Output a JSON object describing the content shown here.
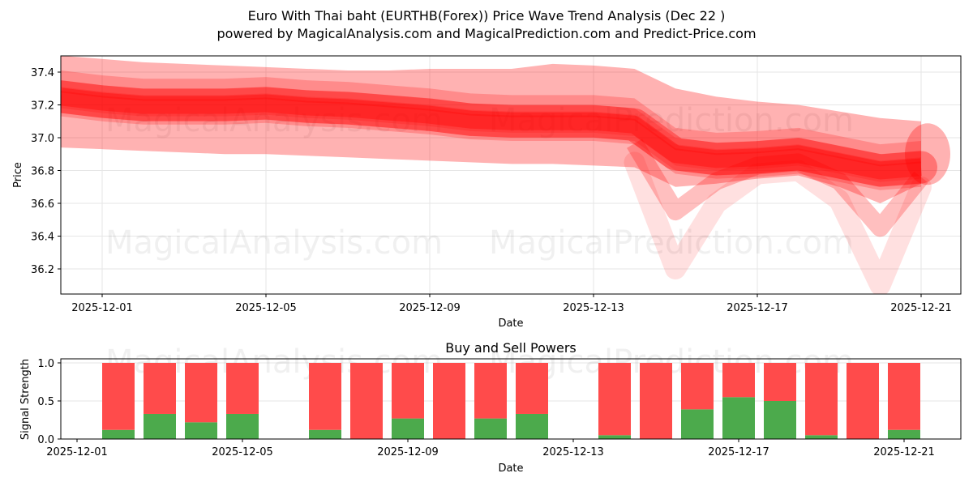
{
  "header": {
    "title": "Euro With Thai baht (EURTHB(Forex)) Price Wave Trend Analysis (Dec 22 )",
    "subtitle": "powered by MagicalAnalysis.com and MagicalPrediction.com and Predict-Price.com"
  },
  "watermarks": [
    "MagicalAnalysis.com",
    "MagicalPrediction.com"
  ],
  "colors": {
    "wave": "#ff0000",
    "buy": "#4caa4c",
    "sell": "#ff4b4b",
    "grid": "#e6e6e6"
  },
  "chart_data": [
    {
      "type": "area",
      "title": "Price Wave Trend",
      "xlabel": "Date",
      "ylabel": "Price",
      "ylim": [
        36.05,
        37.5
      ],
      "yticks": [
        "36.2",
        "36.4",
        "36.6",
        "36.8",
        "37.0",
        "37.2",
        "37.4"
      ],
      "xticks": [
        "2025-12-01",
        "2025-12-05",
        "2025-12-09",
        "2025-12-13",
        "2025-12-17",
        "2025-12-21"
      ],
      "grid": true,
      "x": [
        "2025-11-30",
        "2025-12-01",
        "2025-12-02",
        "2025-12-03",
        "2025-12-04",
        "2025-12-05",
        "2025-12-06",
        "2025-12-07",
        "2025-12-08",
        "2025-12-09",
        "2025-12-10",
        "2025-12-11",
        "2025-12-12",
        "2025-12-13",
        "2025-12-14",
        "2025-12-15",
        "2025-12-16",
        "2025-12-17",
        "2025-12-18",
        "2025-12-19",
        "2025-12-20",
        "2025-12-21"
      ],
      "series": [
        {
          "name": "center_wave",
          "values": [
            37.25,
            37.22,
            37.2,
            37.2,
            37.2,
            37.21,
            37.19,
            37.18,
            37.16,
            37.14,
            37.11,
            37.1,
            37.1,
            37.1,
            37.08,
            36.9,
            36.87,
            36.88,
            36.9,
            36.85,
            36.8,
            36.82
          ]
        },
        {
          "name": "upper_band",
          "values": [
            37.5,
            37.48,
            37.46,
            37.45,
            37.44,
            37.43,
            37.42,
            37.41,
            37.41,
            37.42,
            37.42,
            37.42,
            37.45,
            37.44,
            37.42,
            37.3,
            37.25,
            37.22,
            37.2,
            37.16,
            37.12,
            37.1
          ]
        },
        {
          "name": "lower_band",
          "values": [
            36.94,
            36.93,
            36.92,
            36.91,
            36.9,
            36.9,
            36.89,
            36.88,
            36.87,
            36.86,
            36.85,
            36.84,
            36.84,
            36.83,
            36.82,
            36.7,
            36.72,
            36.75,
            36.77,
            36.7,
            36.6,
            36.72
          ]
        },
        {
          "name": "low_spikes",
          "values": [
            null,
            null,
            null,
            null,
            null,
            null,
            null,
            null,
            null,
            null,
            null,
            null,
            null,
            null,
            36.85,
            36.2,
            36.6,
            36.78,
            36.8,
            36.62,
            36.1,
            36.7
          ]
        }
      ]
    },
    {
      "type": "bar",
      "title": "Buy and Sell Powers",
      "xlabel": "Date",
      "ylabel": "Signal Strength",
      "ylim": [
        0,
        1.05
      ],
      "yticks": [
        "0.0",
        "0.5",
        "1.0"
      ],
      "xticks": [
        "2025-12-01",
        "2025-12-05",
        "2025-12-09",
        "2025-12-13",
        "2025-12-17",
        "2025-12-21"
      ],
      "grid": true,
      "stacked": true,
      "categories": [
        "2025-12-02",
        "2025-12-03",
        "2025-12-04",
        "2025-12-05",
        "2025-12-07",
        "2025-12-08",
        "2025-12-09",
        "2025-12-10",
        "2025-12-11",
        "2025-12-12",
        "2025-12-14",
        "2025-12-15",
        "2025-12-16",
        "2025-12-17",
        "2025-12-18",
        "2025-12-19",
        "2025-12-20",
        "2025-12-21"
      ],
      "series": [
        {
          "name": "Buy",
          "color": "#4caa4c",
          "values": [
            0.12,
            0.33,
            0.22,
            0.33,
            0.12,
            0.0,
            0.27,
            0.0,
            0.27,
            0.33,
            0.05,
            0.0,
            0.39,
            0.55,
            0.5,
            0.05,
            0.0,
            0.12
          ]
        },
        {
          "name": "Sell",
          "color": "#ff4b4b",
          "values": [
            0.88,
            0.67,
            0.78,
            0.67,
            0.88,
            1.0,
            0.73,
            1.0,
            0.73,
            0.67,
            0.95,
            1.0,
            0.61,
            0.45,
            0.5,
            0.95,
            1.0,
            0.88
          ]
        }
      ]
    }
  ]
}
